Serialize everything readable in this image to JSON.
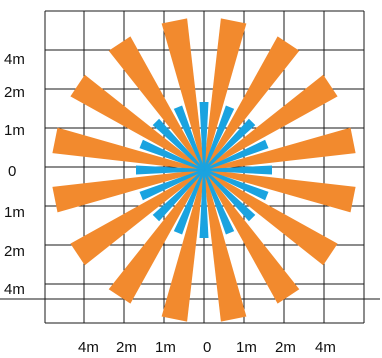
{
  "colors": {
    "background": "#ffffff",
    "grid": "#1a1a1a",
    "outer_zone": "#f28a2e",
    "inner_zone": "#1aa3e0"
  },
  "y_labels": [
    "4m",
    "2m",
    "1m",
    "0",
    "1m",
    "2m",
    "4m"
  ],
  "x_labels": [
    "4m",
    "2m",
    "1m",
    "0",
    "1m",
    "2m",
    "4m"
  ],
  "beam_count": 16
}
